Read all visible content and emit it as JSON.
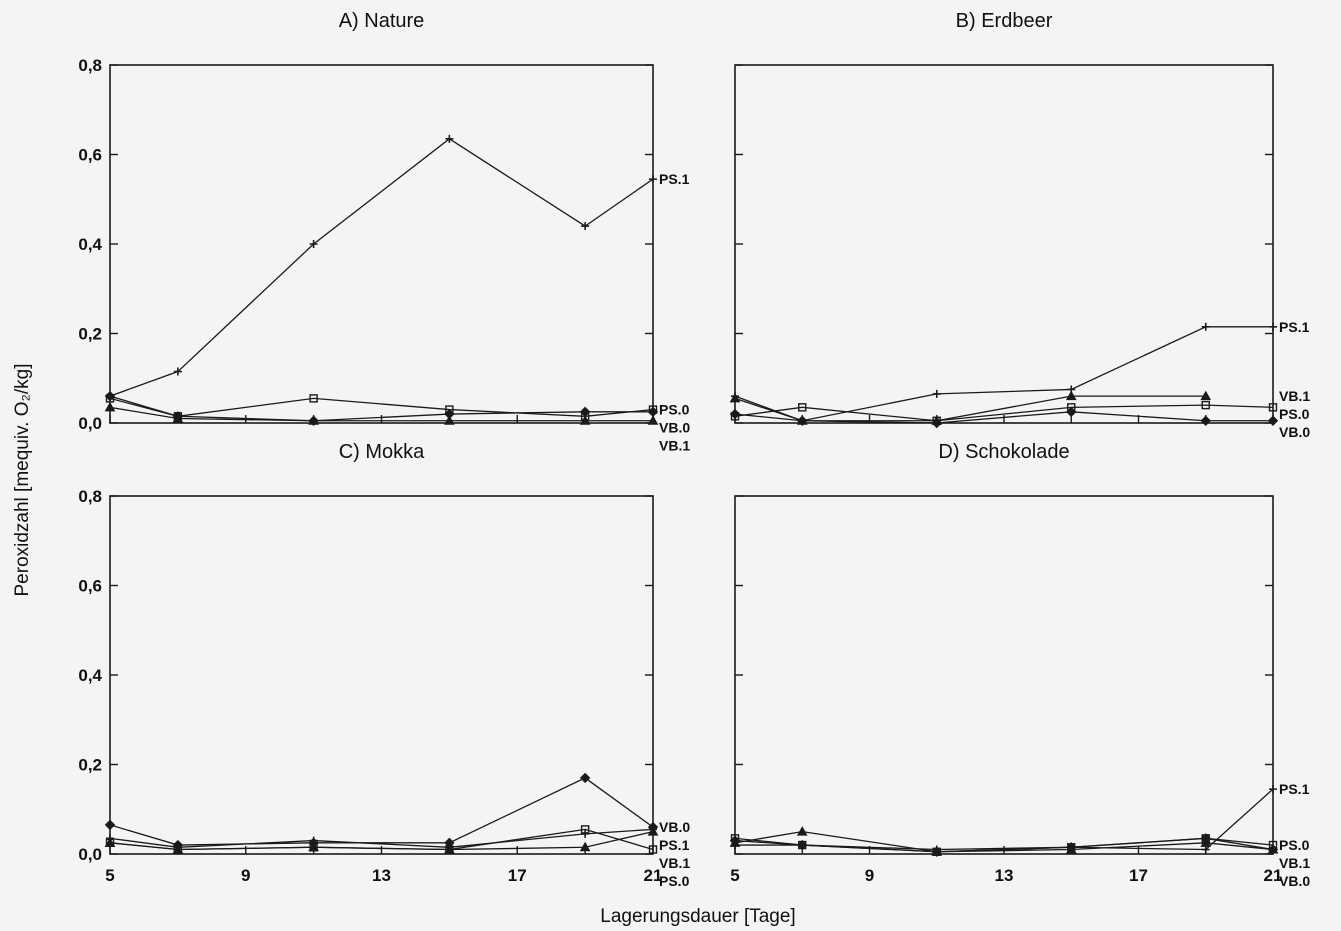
{
  "chart_data": [
    {
      "type": "line",
      "title": "A) Nature",
      "x": [
        5,
        7,
        11,
        15,
        19,
        21
      ],
      "ylim": [
        0,
        0.8
      ],
      "series": [
        {
          "name": "PS.1",
          "values": [
            0.06,
            0.115,
            0.4,
            0.635,
            0.44,
            0.545
          ]
        },
        {
          "name": "PS.0",
          "values": [
            0.055,
            0.015,
            0.055,
            0.03,
            0.015,
            0.03
          ]
        },
        {
          "name": "VB.0",
          "values": [
            0.06,
            0.015,
            0.005,
            0.02,
            0.025,
            0.025
          ]
        },
        {
          "name": "VB.1",
          "values": [
            0.035,
            0.01,
            0.005,
            0.005,
            0.005,
            0.005
          ]
        }
      ]
    },
    {
      "type": "line",
      "title": "B) Erdbeer",
      "x": [
        5,
        7,
        11,
        15,
        19,
        21
      ],
      "ylim": [
        0,
        0.8
      ],
      "series": [
        {
          "name": "PS.1",
          "values": [
            0.06,
            0.005,
            0.065,
            0.075,
            0.215,
            0.215
          ]
        },
        {
          "name": "VB.1",
          "values": [
            0.055,
            0.005,
            0.005,
            0.06,
            0.06,
            null
          ]
        },
        {
          "name": "PS.0",
          "values": [
            0.015,
            0.035,
            0.005,
            0.035,
            0.04,
            0.035
          ]
        },
        {
          "name": "VB.0",
          "values": [
            0.02,
            0.005,
            0.0,
            0.025,
            0.005,
            0.005
          ]
        }
      ]
    },
    {
      "type": "line",
      "title": "C) Mokka",
      "x": [
        5,
        7,
        11,
        15,
        19,
        21
      ],
      "ylim": [
        0,
        0.8
      ],
      "series": [
        {
          "name": "VB.0",
          "values": [
            0.065,
            0.02,
            0.025,
            0.025,
            0.17,
            0.06
          ]
        },
        {
          "name": "PS.1",
          "values": [
            0.035,
            0.015,
            0.03,
            0.015,
            0.045,
            0.055
          ]
        },
        {
          "name": "VB.1",
          "values": [
            0.025,
            0.01,
            0.015,
            0.01,
            0.015,
            0.05
          ]
        },
        {
          "name": "PS.0",
          "values": [
            0.025,
            0.01,
            0.015,
            0.01,
            0.055,
            0.01
          ]
        }
      ]
    },
    {
      "type": "line",
      "title": "D) Schokolade",
      "x": [
        5,
        7,
        11,
        15,
        19,
        21
      ],
      "ylim": [
        0,
        0.8
      ],
      "series": [
        {
          "name": "PS.1",
          "values": [
            0.02,
            0.02,
            0.01,
            0.015,
            0.01,
            0.145
          ]
        },
        {
          "name": "PS.0",
          "values": [
            0.035,
            0.02,
            0.005,
            0.015,
            0.035,
            0.02
          ]
        },
        {
          "name": "VB.1",
          "values": [
            0.025,
            0.05,
            0.005,
            0.01,
            0.025,
            0.01
          ]
        },
        {
          "name": "VB.0",
          "values": [
            0.03,
            0.02,
            0.005,
            0.015,
            0.035,
            0.01
          ]
        }
      ]
    }
  ],
  "axes": {
    "x_ticks": [
      "5",
      "9",
      "13",
      "17",
      "21"
    ],
    "y_ticks": [
      "0,0",
      "0,2",
      "0,4",
      "0,6",
      "0,8"
    ],
    "ylabel": "Peroxidzahl [mequiv. O₂/kg]",
    "xlabel": "Lagerungsdauer [Tage]"
  },
  "colors": {
    "line": "#1a1a1a",
    "background": "#f4f4f2"
  }
}
